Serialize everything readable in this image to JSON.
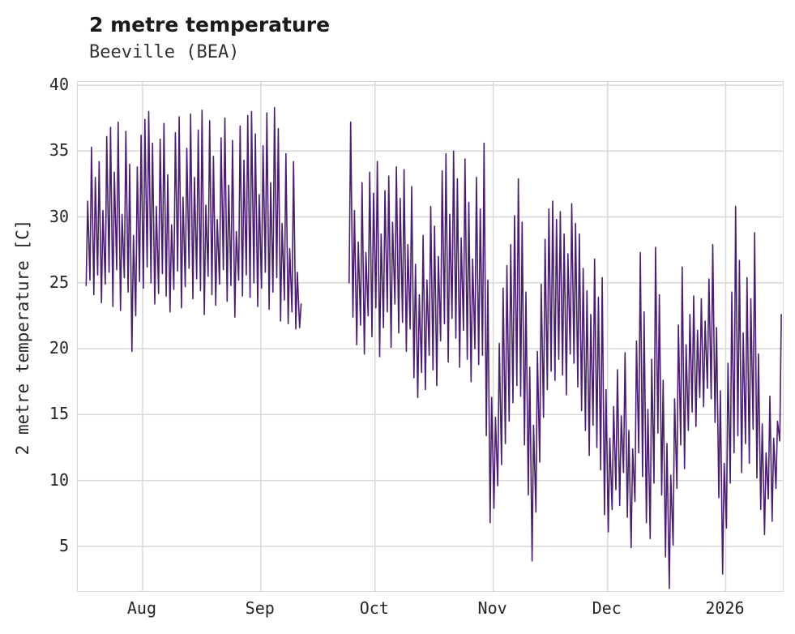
{
  "header": {
    "title": "2 metre temperature",
    "subtitle": "Beeville (BEA)"
  },
  "chart_data": {
    "type": "line",
    "title": "2 metre temperature",
    "subtitle": "Beeville (BEA)",
    "xlabel": "",
    "ylabel": "2 metre temperature [C]",
    "grid": true,
    "legend": "none",
    "colors": {
      "line": "#4a1d6e",
      "grid": "#d8d8d8",
      "text": "#262626"
    },
    "ylim": [
      1.61,
      40.25
    ],
    "yticks": [
      5,
      10,
      15,
      20,
      25,
      30,
      35,
      40
    ],
    "x_encoding": "day_index_from_series_start",
    "xlim_days": [
      -2,
      183
    ],
    "xticks": [
      {
        "day": 15,
        "label": "Aug"
      },
      {
        "day": 46,
        "label": "Sep"
      },
      {
        "day": 76,
        "label": "Oct"
      },
      {
        "day": 107,
        "label": "Nov"
      },
      {
        "day": 137,
        "label": "Dec"
      },
      {
        "day": 168,
        "label": "2026"
      }
    ],
    "series_name": "2 metre temperature",
    "segments": [
      {
        "start_day": 0,
        "min": [
          24.8,
          25.2,
          24.1,
          25.6,
          23.5,
          24.9,
          25.8,
          23.2,
          26.0,
          22.9,
          25.4,
          24.3,
          19.8,
          22.5,
          25.1,
          24.6,
          26.2,
          25.0,
          23.4,
          24.2,
          25.7,
          24.0,
          22.8,
          24.5,
          25.9,
          23.1,
          24.7,
          26.1,
          23.8,
          25.3,
          24.4,
          22.6,
          25.5,
          24.1,
          23.3,
          24.9,
          26.0,
          23.6,
          24.8,
          22.4,
          25.2,
          24.0,
          25.6,
          23.9,
          25.0,
          23.2,
          24.6,
          25.8,
          23.0,
          24.3,
          25.4,
          22.1,
          23.7,
          21.9,
          22.8,
          21.5,
          21.6
        ],
        "max": [
          31.2,
          35.3,
          33.0,
          34.2,
          30.5,
          36.1,
          36.8,
          33.4,
          37.2,
          30.2,
          36.5,
          34.0,
          28.6,
          33.8,
          36.2,
          37.4,
          38.0,
          35.6,
          30.8,
          35.9,
          37.1,
          33.2,
          29.4,
          36.4,
          37.6,
          31.5,
          35.2,
          37.8,
          33.0,
          36.6,
          38.1,
          30.9,
          37.3,
          34.6,
          29.8,
          36.0,
          37.5,
          32.4,
          35.8,
          28.9,
          36.9,
          34.3,
          37.7,
          38.0,
          36.3,
          31.7,
          35.4,
          37.9,
          32.6,
          38.3,
          36.7,
          29.5,
          34.8,
          27.6,
          34.2,
          25.8,
          23.4
        ]
      },
      {
        "start_day": 69,
        "min": [
          25.0,
          22.4,
          20.3,
          21.8,
          19.6,
          22.5,
          20.9,
          23.1,
          19.4,
          21.6,
          22.8,
          20.1,
          23.4,
          21.2,
          22.0,
          19.8,
          21.5,
          17.8,
          16.3,
          18.2,
          16.9,
          19.5,
          18.4,
          17.2,
          20.6,
          21.9,
          19.0,
          22.3,
          20.8,
          18.6,
          21.4,
          19.2,
          17.5,
          20.0,
          18.8,
          19.5,
          13.4,
          6.8,
          7.9,
          9.6,
          11.2,
          12.8,
          14.5,
          15.9,
          17.2,
          16.4,
          12.7,
          8.9,
          3.9,
          7.6,
          11.4,
          14.8,
          16.9,
          18.3,
          17.6,
          19.2,
          18.0,
          16.5,
          19.6,
          18.9,
          17.1,
          15.3,
          13.8,
          11.9,
          14.2,
          12.5,
          10.8,
          7.4,
          6.1,
          7.8,
          9.3,
          8.1,
          10.6,
          7.2,
          4.9,
          8.4,
          12.1,
          10.3,
          6.8,
          5.6,
          9.8,
          13.6,
          8.9,
          4.2,
          1.8,
          5.1,
          9.4,
          12.7,
          10.9,
          13.8,
          15.2,
          14.1,
          16.3,
          15.6,
          17.0,
          16.2,
          14.4,
          8.7,
          2.9,
          6.4,
          9.8,
          12.1,
          13.4,
          10.6,
          12.8,
          11.3,
          13.9,
          10.2,
          7.8,
          5.9,
          8.6,
          6.9,
          9.4,
          13.0
        ],
        "max": [
          37.2,
          30.5,
          28.1,
          32.6,
          27.3,
          33.4,
          31.8,
          34.2,
          28.7,
          32.0,
          33.1,
          29.6,
          33.8,
          31.4,
          33.6,
          27.9,
          32.3,
          26.4,
          24.1,
          28.6,
          25.2,
          30.8,
          29.3,
          27.0,
          33.5,
          34.8,
          30.2,
          35.0,
          32.9,
          28.4,
          34.4,
          31.1,
          26.8,
          33.0,
          30.6,
          35.6,
          25.2,
          16.3,
          14.8,
          20.4,
          24.6,
          26.3,
          27.9,
          30.1,
          32.9,
          29.6,
          24.3,
          18.6,
          14.2,
          19.8,
          24.9,
          28.3,
          30.6,
          31.2,
          29.8,
          30.4,
          28.7,
          27.2,
          31.0,
          29.5,
          28.7,
          26.1,
          24.4,
          22.6,
          26.8,
          23.9,
          25.4,
          16.9,
          13.2,
          15.6,
          18.4,
          14.9,
          19.7,
          13.8,
          12.4,
          20.6,
          27.3,
          22.8,
          15.4,
          19.2,
          27.7,
          24.1,
          17.6,
          12.8,
          10.4,
          16.2,
          21.8,
          26.2,
          20.3,
          22.6,
          24.0,
          21.4,
          23.8,
          22.1,
          25.3,
          27.9,
          21.6,
          16.8,
          11.3,
          18.9,
          24.3,
          30.8,
          26.7,
          21.2,
          25.4,
          23.8,
          28.8,
          19.6,
          14.3,
          12.1,
          16.4,
          13.2,
          14.5,
          22.6
        ]
      }
    ]
  }
}
